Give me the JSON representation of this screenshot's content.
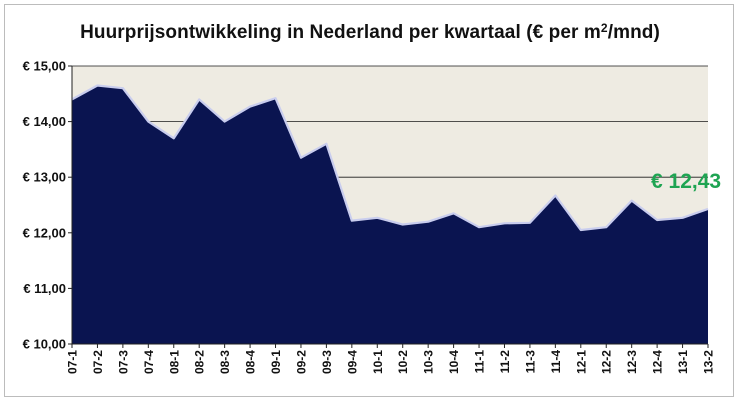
{
  "chart_data": {
    "type": "area",
    "title_main": "Huurprijsontwikkeling in Nederland per kwartaal (€ per m",
    "title_sup": "2",
    "title_tail": "/mnd)",
    "categories": [
      "07-1",
      "07-2",
      "07-3",
      "07-4",
      "08-1",
      "08-2",
      "08-3",
      "08-4",
      "09-1",
      "09-2",
      "09-3",
      "09-4",
      "10-1",
      "10-2",
      "10-3",
      "10-4",
      "11-1",
      "11-2",
      "11-3",
      "11-4",
      "12-1",
      "12-2",
      "12-3",
      "12-4",
      "13-1",
      "13-2"
    ],
    "values": [
      14.4,
      14.65,
      14.6,
      14.0,
      13.7,
      14.4,
      14.0,
      14.27,
      14.42,
      13.35,
      13.6,
      12.22,
      12.27,
      12.15,
      12.2,
      12.35,
      12.1,
      12.17,
      12.18,
      12.67,
      12.05,
      12.1,
      12.58,
      12.23,
      12.27,
      12.43
    ],
    "ylim": [
      10,
      15
    ],
    "yticks": [
      "€ 10,00",
      "€ 11,00",
      "€ 12,00",
      "€ 13,00",
      "€ 14,00",
      "€ 15,00"
    ],
    "grid": true,
    "annotation": "€ 12,43",
    "colors": {
      "area": "#0a1450",
      "area_edge": "#c9cdee",
      "plot_bg": "#eeebe2",
      "grid": "#1a1a1a",
      "annotation": "#1ea452"
    }
  }
}
